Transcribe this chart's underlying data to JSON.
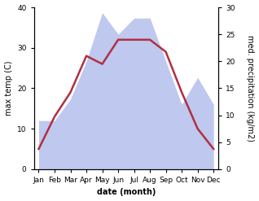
{
  "months": [
    "Jan",
    "Feb",
    "Mar",
    "Apr",
    "May",
    "Jun",
    "Jul",
    "Aug",
    "Sep",
    "Oct",
    "Nov",
    "Dec"
  ],
  "temp": [
    5,
    13,
    19,
    28,
    26,
    32,
    32,
    32,
    29,
    19,
    10,
    5
  ],
  "precip": [
    9,
    9,
    13,
    20,
    29,
    25,
    28,
    28,
    20,
    12,
    17,
    12
  ],
  "temp_color": "#b03040",
  "precip_fill_color": "#bfc8ef",
  "ylabel_left": "max temp (C)",
  "ylabel_right": "med. precipitation (kg/m2)",
  "xlabel": "date (month)",
  "ylim_left": [
    0,
    40
  ],
  "ylim_right": [
    0,
    30
  ],
  "label_fontsize": 7,
  "tick_fontsize": 6.5,
  "linewidth": 1.8
}
